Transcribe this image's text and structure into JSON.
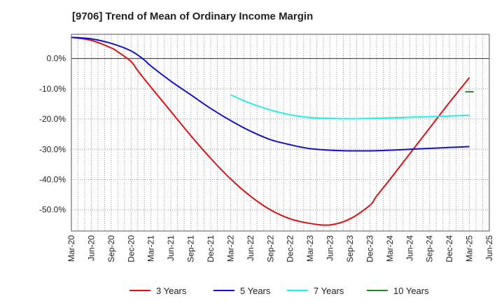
{
  "chart_data": {
    "type": "line",
    "title": "[9706]  Trend of Mean of Ordinary Income Margin",
    "xlabel": "",
    "ylabel": "",
    "x_ticks": [
      "Mar-20",
      "Jun-20",
      "Sep-20",
      "Dec-20",
      "Mar-21",
      "Jun-21",
      "Sep-21",
      "Dec-21",
      "Mar-22",
      "Jun-22",
      "Sep-22",
      "Dec-22",
      "Mar-23",
      "Jun-23",
      "Sep-23",
      "Dec-23",
      "Mar-24",
      "Jun-24",
      "Sep-24",
      "Dec-24",
      "Mar-25",
      "Jun-25"
    ],
    "y_ticks": [
      0,
      -10,
      -20,
      -30,
      -40,
      -50
    ],
    "y_tick_labels": [
      "0.0%",
      "-10.0%",
      "-20.0%",
      "-30.0%",
      "-40.0%",
      "-50.0%"
    ],
    "ylim": [
      -57,
      8
    ],
    "grid": true,
    "legend_position": "bottom",
    "series": [
      {
        "name": "3 Years",
        "color": "#dd1111",
        "x": [
          "Mar-20",
          "Jun-20",
          "Sep-20",
          "Oct-20",
          "Dec-20",
          "Jan-21",
          "Mar-21",
          "Jun-21",
          "Sep-21",
          "Dec-21",
          "Mar-22",
          "Jun-22",
          "Sep-22",
          "Dec-22",
          "Mar-23",
          "Jun-23",
          "Sep-23",
          "Dec-23",
          "Jan-24",
          "Mar-24",
          "Jun-24",
          "Sep-24",
          "Dec-24",
          "Mar-25"
        ],
        "values": [
          7.0,
          6.0,
          3.5,
          2.2,
          -1.0,
          -4.0,
          -9.5,
          -17.5,
          -25.5,
          -33.0,
          -39.8,
          -45.5,
          -50.0,
          -53.0,
          -54.5,
          -55.0,
          -53.0,
          -48.5,
          -45.5,
          -40.0,
          -31.5,
          -23.0,
          -14.5,
          -6.3
        ]
      },
      {
        "name": "5 Years",
        "color": "#1111cc",
        "x": [
          "Mar-20",
          "Jun-20",
          "Sep-20",
          "Dec-20",
          "Feb-21",
          "Mar-21",
          "Jun-21",
          "Sep-21",
          "Dec-21",
          "Mar-22",
          "Jun-22",
          "Sep-22",
          "Dec-22",
          "Mar-23",
          "Jun-23",
          "Sep-23",
          "Dec-23",
          "Mar-24",
          "Jun-24",
          "Sep-24",
          "Dec-24",
          "Mar-25"
        ],
        "values": [
          7.0,
          6.5,
          5.0,
          2.5,
          -0.5,
          -2.5,
          -7.5,
          -12.0,
          -16.5,
          -20.5,
          -24.0,
          -26.8,
          -28.5,
          -29.8,
          -30.3,
          -30.5,
          -30.5,
          -30.3,
          -30.0,
          -29.7,
          -29.4,
          -29.1
        ]
      },
      {
        "name": "7 Years",
        "color": "#22eeee",
        "x": [
          "Mar-22",
          "Jun-22",
          "Sep-22",
          "Dec-22",
          "Mar-23",
          "Jun-23",
          "Sep-23",
          "Dec-23",
          "Mar-24",
          "Jun-24",
          "Sep-24",
          "Dec-24",
          "Mar-25"
        ],
        "values": [
          -12.0,
          -14.8,
          -17.0,
          -18.6,
          -19.5,
          -19.8,
          -19.9,
          -19.8,
          -19.6,
          -19.4,
          -19.2,
          -19.0,
          -18.8
        ]
      },
      {
        "name": "10 Years",
        "color": "#228822",
        "x": [
          "Mar-25"
        ],
        "values": [
          -11.0
        ]
      }
    ]
  }
}
